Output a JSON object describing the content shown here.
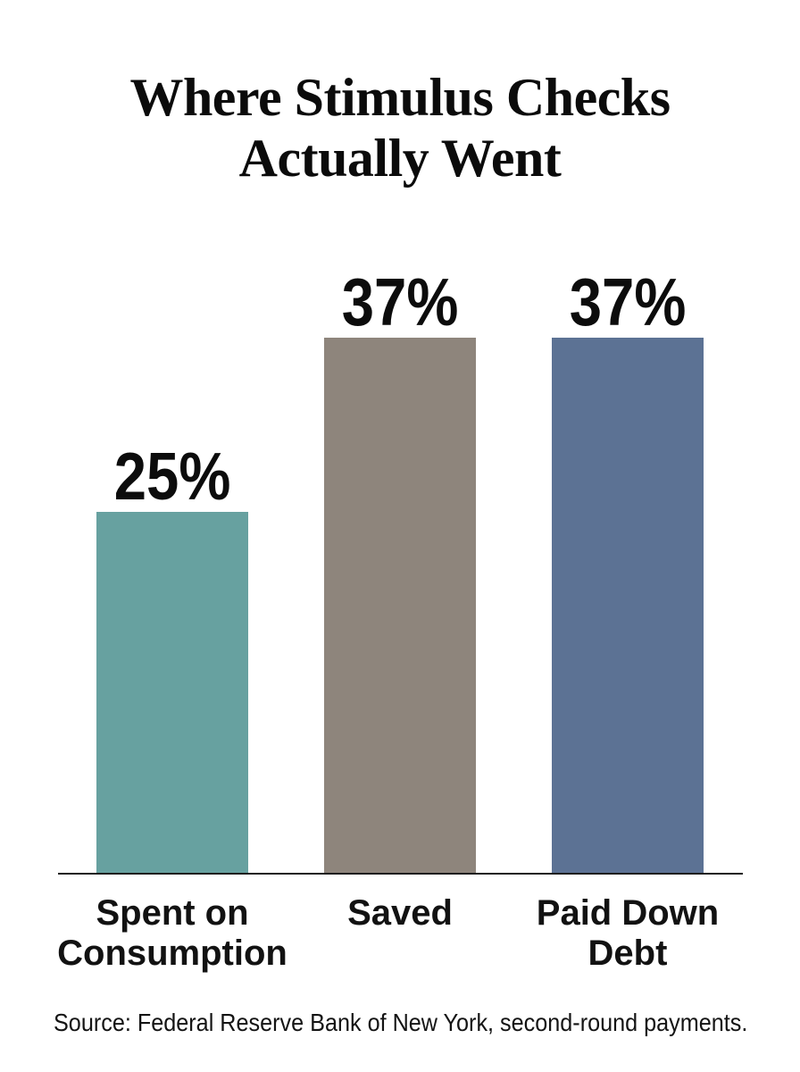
{
  "chart_data": {
    "type": "bar",
    "title": "Where Stimulus Checks\nActually Went",
    "categories": [
      "Spent on Consumption",
      "Saved",
      "Paid Down Debt"
    ],
    "values": [
      25,
      37,
      37
    ],
    "value_labels": [
      "25%",
      "37%",
      "37%"
    ],
    "colors": [
      "#67A1A0",
      "#8E857C",
      "#5C7294"
    ],
    "axis_color": "#1f1f1f",
    "source": "Source: Federal Reserve Bank of New York, second-round payments.",
    "xlabel": "",
    "ylabel": "",
    "ylim": [
      0,
      40
    ],
    "grid": false,
    "legend": false,
    "data_labels_position": "above-bar"
  }
}
